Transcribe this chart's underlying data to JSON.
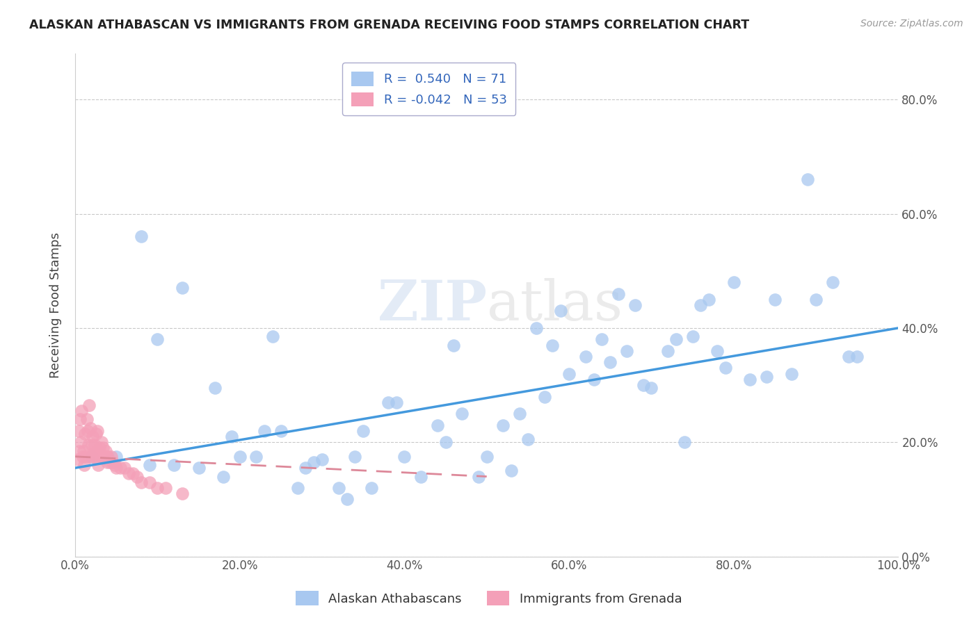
{
  "title": "ALASKAN ATHABASCAN VS IMMIGRANTS FROM GRENADA RECEIVING FOOD STAMPS CORRELATION CHART",
  "source": "Source: ZipAtlas.com",
  "ylabel": "Receiving Food Stamps",
  "legend_label1": "Alaskan Athabascans",
  "legend_label2": "Immigrants from Grenada",
  "r1": 0.54,
  "n1": 71,
  "r2": -0.042,
  "n2": 53,
  "color1": "#a8c8f0",
  "color2": "#f4a0b8",
  "line_color1": "#4499dd",
  "line_color2": "#dd8899",
  "background": "#ffffff",
  "xlim": [
    0.0,
    1.0
  ],
  "ylim": [
    0.0,
    0.88
  ],
  "xticks": [
    0.0,
    0.2,
    0.4,
    0.6,
    0.8,
    1.0
  ],
  "yticks": [
    0.0,
    0.2,
    0.4,
    0.6,
    0.8
  ],
  "blue_x": [
    0.02,
    0.09,
    0.12,
    0.15,
    0.18,
    0.2,
    0.22,
    0.25,
    0.27,
    0.28,
    0.3,
    0.32,
    0.35,
    0.38,
    0.4,
    0.42,
    0.45,
    0.47,
    0.5,
    0.52,
    0.54,
    0.55,
    0.57,
    0.58,
    0.6,
    0.62,
    0.63,
    0.64,
    0.65,
    0.67,
    0.68,
    0.7,
    0.72,
    0.73,
    0.75,
    0.77,
    0.78,
    0.8,
    0.82,
    0.85,
    0.87,
    0.89,
    0.9,
    0.92,
    0.94,
    0.95,
    0.13,
    0.19,
    0.24,
    0.29,
    0.34,
    0.39,
    0.44,
    0.49,
    0.59,
    0.69,
    0.74,
    0.79,
    0.84,
    0.23,
    0.36,
    0.46,
    0.56,
    0.66,
    0.76,
    0.05,
    0.08,
    0.1,
    0.17,
    0.33,
    0.53
  ],
  "blue_y": [
    0.175,
    0.16,
    0.16,
    0.155,
    0.14,
    0.175,
    0.175,
    0.22,
    0.12,
    0.155,
    0.17,
    0.12,
    0.22,
    0.27,
    0.175,
    0.14,
    0.2,
    0.25,
    0.175,
    0.23,
    0.25,
    0.205,
    0.28,
    0.37,
    0.32,
    0.35,
    0.31,
    0.38,
    0.34,
    0.36,
    0.44,
    0.295,
    0.36,
    0.38,
    0.385,
    0.45,
    0.36,
    0.48,
    0.31,
    0.45,
    0.32,
    0.66,
    0.45,
    0.48,
    0.35,
    0.35,
    0.47,
    0.21,
    0.385,
    0.165,
    0.175,
    0.27,
    0.23,
    0.14,
    0.43,
    0.3,
    0.2,
    0.33,
    0.315,
    0.22,
    0.12,
    0.37,
    0.4,
    0.46,
    0.44,
    0.175,
    0.56,
    0.38,
    0.295,
    0.1,
    0.15
  ],
  "pink_x": [
    0.003,
    0.004,
    0.005,
    0.006,
    0.007,
    0.008,
    0.009,
    0.01,
    0.011,
    0.012,
    0.013,
    0.014,
    0.015,
    0.016,
    0.017,
    0.018,
    0.019,
    0.02,
    0.021,
    0.022,
    0.023,
    0.024,
    0.025,
    0.026,
    0.027,
    0.028,
    0.029,
    0.03,
    0.031,
    0.032,
    0.033,
    0.034,
    0.035,
    0.036,
    0.037,
    0.038,
    0.039,
    0.04,
    0.042,
    0.044,
    0.046,
    0.048,
    0.05,
    0.055,
    0.06,
    0.065,
    0.07,
    0.075,
    0.08,
    0.09,
    0.1,
    0.11,
    0.13
  ],
  "pink_y": [
    0.17,
    0.22,
    0.185,
    0.24,
    0.2,
    0.255,
    0.175,
    0.185,
    0.16,
    0.215,
    0.175,
    0.24,
    0.22,
    0.195,
    0.265,
    0.175,
    0.225,
    0.195,
    0.21,
    0.18,
    0.175,
    0.195,
    0.215,
    0.185,
    0.22,
    0.16,
    0.185,
    0.19,
    0.175,
    0.2,
    0.175,
    0.19,
    0.175,
    0.175,
    0.185,
    0.175,
    0.165,
    0.175,
    0.165,
    0.175,
    0.165,
    0.16,
    0.155,
    0.155,
    0.155,
    0.145,
    0.145,
    0.14,
    0.13,
    0.13,
    0.12,
    0.12,
    0.11
  ],
  "blue_line_x0": 0.0,
  "blue_line_x1": 1.0,
  "blue_line_y0": 0.155,
  "blue_line_y1": 0.4,
  "pink_line_x0": 0.0,
  "pink_line_x1": 0.5,
  "pink_line_y0": 0.175,
  "pink_line_y1": 0.14
}
